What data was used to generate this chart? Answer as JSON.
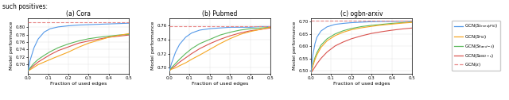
{
  "figsize": [
    6.4,
    1.26
  ],
  "dpi": 100,
  "header_text": "such positives:",
  "subplots": [
    {
      "title": "(a) Cora",
      "xlabel": "Fraction of used edges",
      "ylabel": "Model performance",
      "xlim": [
        0.0,
        0.5
      ],
      "ylim": [
        0.675,
        0.825
      ],
      "yticks": [
        0.7,
        0.72,
        0.74,
        0.76,
        0.78,
        0.8
      ],
      "xticks": [
        0.0,
        0.1,
        0.2,
        0.3,
        0.4,
        0.5
      ],
      "hline": 0.814,
      "curves": {
        "greedy": {
          "x": [
            0.0,
            0.01,
            0.03,
            0.05,
            0.08,
            0.11,
            0.15,
            0.2,
            0.25,
            0.3,
            0.35,
            0.4,
            0.45,
            0.5
          ],
          "y": [
            0.682,
            0.71,
            0.745,
            0.768,
            0.787,
            0.796,
            0.801,
            0.804,
            0.806,
            0.807,
            0.808,
            0.809,
            0.81,
            0.811
          ]
        },
        "pig": {
          "x": [
            0.0,
            0.01,
            0.03,
            0.05,
            0.08,
            0.11,
            0.15,
            0.2,
            0.25,
            0.3,
            0.35,
            0.4,
            0.45,
            0.5
          ],
          "y": [
            0.682,
            0.685,
            0.692,
            0.699,
            0.706,
            0.713,
            0.722,
            0.733,
            0.746,
            0.757,
            0.765,
            0.773,
            0.778,
            0.783
          ]
        },
        "rand_e": {
          "x": [
            0.0,
            0.01,
            0.03,
            0.05,
            0.08,
            0.11,
            0.15,
            0.2,
            0.25,
            0.3,
            0.35,
            0.4,
            0.45,
            0.5
          ],
          "y": [
            0.682,
            0.69,
            0.703,
            0.713,
            0.724,
            0.734,
            0.745,
            0.755,
            0.763,
            0.769,
            0.773,
            0.776,
            0.779,
            0.781
          ]
        },
        "rand_v": {
          "x": [
            0.0,
            0.01,
            0.03,
            0.05,
            0.08,
            0.11,
            0.15,
            0.2,
            0.25,
            0.3,
            0.35,
            0.4,
            0.45,
            0.5
          ],
          "y": [
            0.682,
            0.688,
            0.697,
            0.706,
            0.716,
            0.726,
            0.737,
            0.747,
            0.757,
            0.763,
            0.768,
            0.773,
            0.776,
            0.779
          ]
        }
      }
    },
    {
      "title": "(b) Pubmed",
      "xlabel": "Fraction of used edges",
      "ylabel": "Model performance",
      "xlim": [
        0.0,
        0.5
      ],
      "ylim": [
        0.692,
        0.77
      ],
      "yticks": [
        0.7,
        0.72,
        0.74,
        0.76
      ],
      "xticks": [
        0.0,
        0.1,
        0.2,
        0.3,
        0.4,
        0.5
      ],
      "hline": 0.758,
      "curves": {
        "greedy": {
          "x": [
            0.0,
            0.01,
            0.03,
            0.05,
            0.08,
            0.11,
            0.15,
            0.2,
            0.25,
            0.3,
            0.35,
            0.4,
            0.45,
            0.5
          ],
          "y": [
            0.696,
            0.706,
            0.722,
            0.733,
            0.743,
            0.749,
            0.753,
            0.755,
            0.756,
            0.757,
            0.757,
            0.757,
            0.758,
            0.758
          ]
        },
        "pig": {
          "x": [
            0.0,
            0.01,
            0.03,
            0.05,
            0.08,
            0.11,
            0.15,
            0.2,
            0.25,
            0.3,
            0.35,
            0.4,
            0.45,
            0.5
          ],
          "y": [
            0.696,
            0.698,
            0.7,
            0.703,
            0.707,
            0.712,
            0.718,
            0.726,
            0.734,
            0.741,
            0.747,
            0.751,
            0.754,
            0.757
          ]
        },
        "rand_e": {
          "x": [
            0.0,
            0.01,
            0.03,
            0.05,
            0.08,
            0.11,
            0.15,
            0.2,
            0.25,
            0.3,
            0.35,
            0.4,
            0.45,
            0.5
          ],
          "y": [
            0.696,
            0.7,
            0.706,
            0.712,
            0.72,
            0.727,
            0.734,
            0.74,
            0.746,
            0.75,
            0.753,
            0.755,
            0.756,
            0.757
          ]
        },
        "rand_v": {
          "x": [
            0.0,
            0.01,
            0.03,
            0.05,
            0.08,
            0.11,
            0.15,
            0.2,
            0.25,
            0.3,
            0.35,
            0.4,
            0.45,
            0.5
          ],
          "y": [
            0.696,
            0.699,
            0.703,
            0.708,
            0.714,
            0.72,
            0.727,
            0.734,
            0.74,
            0.745,
            0.749,
            0.752,
            0.754,
            0.756
          ]
        }
      }
    },
    {
      "title": "(c) ogbn-arxiv",
      "xlabel": "Fraction of used edges",
      "ylabel": "Model performance",
      "xlim": [
        0.0,
        0.5
      ],
      "ylim": [
        0.488,
        0.715
      ],
      "yticks": [
        0.5,
        0.55,
        0.6,
        0.65,
        0.7
      ],
      "xticks": [
        0.0,
        0.1,
        0.2,
        0.3,
        0.4,
        0.5
      ],
      "hline": 0.703,
      "curves": {
        "greedy": {
          "x": [
            0.0,
            0.005,
            0.01,
            0.02,
            0.03,
            0.05,
            0.08,
            0.12,
            0.16,
            0.2,
            0.25,
            0.3,
            0.35,
            0.4,
            0.45,
            0.5
          ],
          "y": [
            0.49,
            0.53,
            0.565,
            0.61,
            0.637,
            0.662,
            0.679,
            0.689,
            0.693,
            0.696,
            0.698,
            0.7,
            0.701,
            0.701,
            0.702,
            0.702
          ]
        },
        "pig": {
          "x": [
            0.0,
            0.005,
            0.01,
            0.02,
            0.03,
            0.05,
            0.08,
            0.12,
            0.16,
            0.2,
            0.25,
            0.3,
            0.35,
            0.4,
            0.45,
            0.5
          ],
          "y": [
            0.49,
            0.505,
            0.52,
            0.545,
            0.565,
            0.595,
            0.622,
            0.643,
            0.657,
            0.667,
            0.675,
            0.681,
            0.686,
            0.69,
            0.694,
            0.697
          ]
        },
        "rand_e": {
          "x": [
            0.0,
            0.005,
            0.01,
            0.02,
            0.03,
            0.05,
            0.08,
            0.12,
            0.16,
            0.2,
            0.25,
            0.3,
            0.35,
            0.4,
            0.45,
            0.5
          ],
          "y": [
            0.49,
            0.508,
            0.525,
            0.553,
            0.574,
            0.604,
            0.63,
            0.65,
            0.663,
            0.672,
            0.68,
            0.685,
            0.689,
            0.693,
            0.696,
            0.699
          ]
        },
        "rand_v": {
          "x": [
            0.0,
            0.005,
            0.01,
            0.02,
            0.03,
            0.05,
            0.08,
            0.12,
            0.16,
            0.2,
            0.25,
            0.3,
            0.35,
            0.4,
            0.45,
            0.5
          ],
          "y": [
            0.49,
            0.496,
            0.502,
            0.515,
            0.528,
            0.55,
            0.576,
            0.601,
            0.617,
            0.63,
            0.642,
            0.652,
            0.659,
            0.665,
            0.67,
            0.674
          ]
        }
      }
    }
  ],
  "colors": {
    "greedy": "#5599e8",
    "pig": "#f5a623",
    "rand_e": "#5cb85c",
    "rand_v": "#d9534f",
    "hline": "#e88888"
  },
  "legend_labels": {
    "greedy": "GCN($S_{GreedyPIG}$)",
    "pig": "GCN($S_{PIG}$)",
    "rand_e": "GCN($S_{Rand-\\lambda}$)",
    "rand_v": "GCN($S_{AND-\\nu}$)",
    "hline": "GCN($\\varepsilon$)"
  }
}
